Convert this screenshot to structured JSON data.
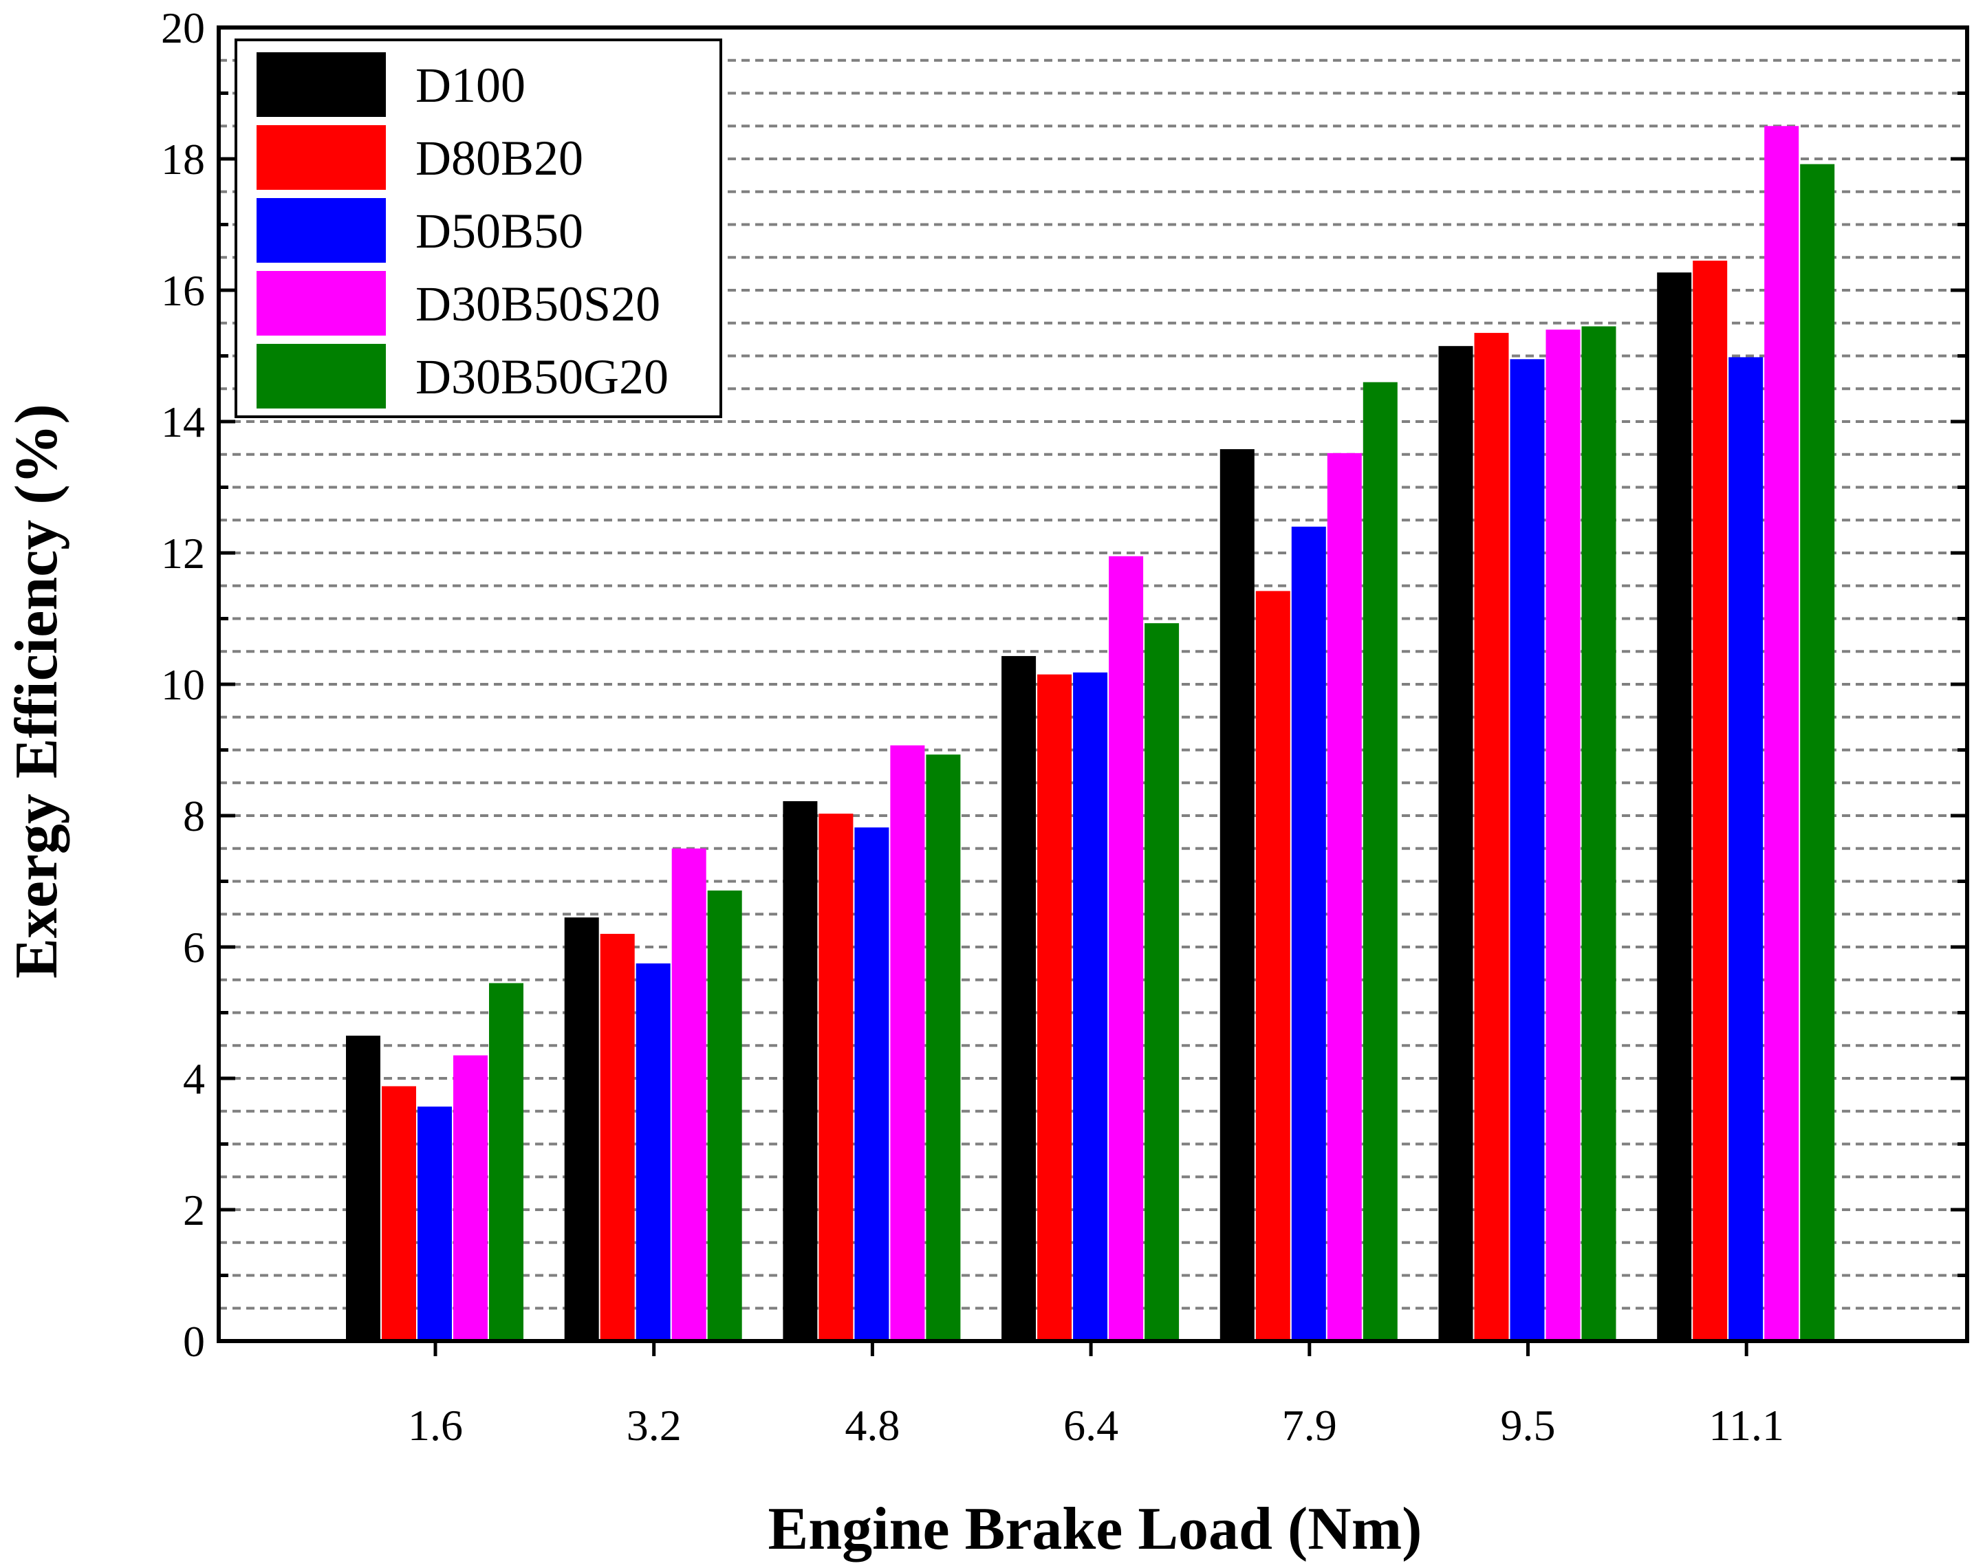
{
  "chart_data": {
    "type": "bar",
    "title": "",
    "xlabel": "Engine Brake Load (Nm)",
    "ylabel": "Exergy Efficiency (%)",
    "ylim": [
      0,
      20
    ],
    "yticks": [
      "0",
      "2",
      "4",
      "6",
      "8",
      "10",
      "12",
      "14",
      "16",
      "18",
      "20"
    ],
    "categories": [
      "1.6",
      "3.2",
      "4.8",
      "6.4",
      "7.9",
      "9.5",
      "11.1"
    ],
    "grid": "dashed horizontal lines every 0.5",
    "legend_position": "top-left",
    "series": [
      {
        "name": "D100",
        "color": "#000000",
        "values": [
          4.65,
          6.45,
          8.22,
          10.43,
          13.58,
          15.15,
          16.27
        ]
      },
      {
        "name": "D80B20",
        "color": "#ff0000",
        "values": [
          3.88,
          6.2,
          8.03,
          10.15,
          11.42,
          15.35,
          16.45
        ]
      },
      {
        "name": "D50B50",
        "color": "#0000ff",
        "values": [
          3.57,
          5.75,
          7.82,
          10.18,
          12.4,
          14.95,
          14.98
        ]
      },
      {
        "name": "D30B50S20",
        "color": "#ff00ff",
        "values": [
          4.35,
          7.5,
          9.07,
          11.95,
          13.52,
          15.4,
          18.5
        ]
      },
      {
        "name": "D30B50G20",
        "color": "#008000",
        "values": [
          5.45,
          6.86,
          8.93,
          10.93,
          14.6,
          15.45,
          17.92
        ]
      }
    ]
  }
}
